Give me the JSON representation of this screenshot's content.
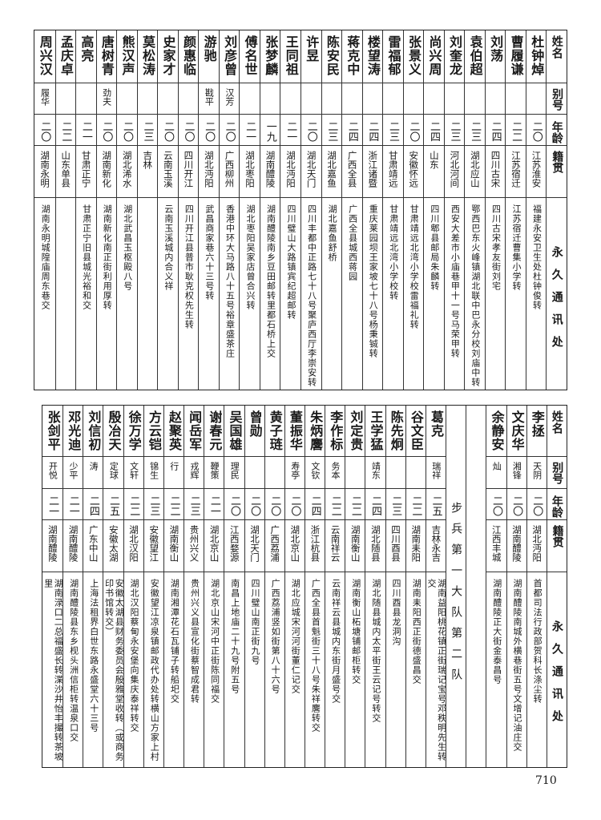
{
  "headers": {
    "name": "姓名",
    "alias": "别号",
    "age": "年龄",
    "origin": "籍贯",
    "address": "永久通讯处"
  },
  "top_table": [
    {
      "name": "杜钟焯",
      "alias": "",
      "age": "二〇",
      "origin": "江苏淮安",
      "address": "福建永安卫生处杜钟俊转"
    },
    {
      "name": "曹履谦",
      "alias": "",
      "age": "二二",
      "origin": "江苏宿迁",
      "address": "江苏宿迁曹集小学转"
    },
    {
      "name": "刘荡",
      "alias": "",
      "age": "二四",
      "origin": "四川古宋",
      "address": "四川古宋孝友街刘宅"
    },
    {
      "name": "袁伯超",
      "alias": "",
      "age": "二三",
      "origin": "湖北应山",
      "address": "鄂西巴东火峰镇湖北联中巴永分校刘庙中转"
    },
    {
      "name": "刘奎龙",
      "alias": "",
      "age": "二三",
      "origin": "河北河间",
      "address": "西安大差市小庙巷甲十一号马荣甲转"
    },
    {
      "name": "尚兴周",
      "alias": "",
      "age": "二四",
      "origin": "山东",
      "address": "四川郫县邮局朱麟转"
    },
    {
      "name": "张景义",
      "alias": "",
      "age": "二〇",
      "origin": "安徽怀远",
      "address": "甘肃靖远北湾小学校雷福礼转"
    },
    {
      "name": "雷福郁",
      "alias": "",
      "age": "二三",
      "origin": "甘肃靖远",
      "address": "甘肃靖远北湾小学校转"
    },
    {
      "name": "楼望涛",
      "alias": "",
      "age": "二四",
      "origin": "浙江诸暨",
      "address": "重庆莱园坝王家坡七十八号杨秉铖转"
    },
    {
      "name": "蒋克中",
      "alias": "",
      "age": "二四",
      "origin": "广西全县",
      "address": "广西全县城西蒋园"
    },
    {
      "name": "陈安民",
      "alias": "",
      "age": "二三",
      "origin": "湖北嘉鱼",
      "address": "湖北嘉鱼舒桥"
    },
    {
      "name": "许昱",
      "alias": "",
      "age": "二〇",
      "origin": "湖北天门",
      "address": "四川丰都中正路七十八号聚庐西厅李崇安转"
    },
    {
      "name": "王同祖",
      "alias": "",
      "age": "二一",
      "origin": "湖北沔阳",
      "address": "四川璧山大路镇宾纪超邮转"
    },
    {
      "name": "张梦麟",
      "alias": "",
      "age": "一九",
      "origin": "湖南醴陵",
      "address": "湖南醴陵南乡豆田邮转里都石桥上交"
    },
    {
      "name": "傅名世",
      "alias": "",
      "age": "二一",
      "origin": "湖北枣阳",
      "address": "湖北枣阳吴家店曾合兴转"
    },
    {
      "name": "刘彦曾",
      "alias": "汉芳",
      "age": "二〇",
      "origin": "广西柳州",
      "address": "香港中环大马路八十五号裕章盛茶庄"
    },
    {
      "name": "游驰",
      "alias": "戡平",
      "age": "二〇",
      "origin": "湖北沔阳",
      "address": "武昌商家巷六十三号转"
    },
    {
      "name": "颜惠临",
      "alias": "",
      "age": "二〇",
      "origin": "四川开江",
      "address": "四川开江县普市耿克权先生转"
    },
    {
      "name": "史家才",
      "alias": "",
      "age": "二〇",
      "origin": "云南玉溪",
      "address": "云南玉溪城内合义祥"
    },
    {
      "name": "莫松涛",
      "alias": "",
      "age": "二三",
      "origin": "吉林",
      "address": ""
    },
    {
      "name": "熊汉声",
      "alias": "",
      "age": "二〇",
      "origin": "湖北浠水",
      "address": "湖北武昌玉枢殿八号"
    },
    {
      "name": "唐树青",
      "alias": "劲夫",
      "age": "二〇",
      "origin": "湖南新化",
      "address": "湖南新化南正街利用厚转"
    },
    {
      "name": "高亮",
      "alias": "",
      "age": "二一",
      "origin": "甘肃正宁",
      "address": "甘肃正宁旧县城光裕和交"
    },
    {
      "name": "孟庆卓",
      "alias": "",
      "age": "二二",
      "origin": "山东单县",
      "address": ""
    },
    {
      "name": "周兴汉",
      "alias": "履华",
      "age": "二〇",
      "origin": "湖南永明",
      "address": "湖南永明城隍庙周东巷交"
    }
  ],
  "bottom_section_label": "步兵第一大队第二队",
  "bottom_table_before_label": [
    {
      "name": "李拯",
      "alias": "天阴",
      "age": "二〇",
      "origin": "湖北沔阳",
      "address": "首都司法行政部贺科长涤尘转"
    },
    {
      "name": "文庆华",
      "alias": "湘锋",
      "age": "二〇",
      "origin": "湖南醴陵",
      "address": "湖南醴陵南城外横巷街五号文增记油庄交"
    },
    {
      "name": "余静安",
      "alias": "灿",
      "age": "二〇",
      "origin": "江西丰城",
      "address": "湖南醴陵正大街金泰昌号"
    }
  ],
  "bottom_table": [
    {
      "name": "葛克",
      "alias": "瑞祥",
      "age": "二五",
      "origin": "吉林永吉",
      "address": "湖南益阳桃花镇正街瑞记宝号邓秩明先生转交"
    },
    {
      "name": "谷文臣",
      "alias": "",
      "age": "二二",
      "origin": "湖南耒阳",
      "address": "湖南耒阳西正街德盛昌交"
    },
    {
      "name": "陈先炯",
      "alias": "",
      "age": "二三",
      "origin": "四川酉县",
      "address": "四川酉县龙洞沟"
    },
    {
      "name": "王学猛",
      "alias": "靖东",
      "age": "二四",
      "origin": "湖北随县",
      "address": "湖北随县城内太平街王云记号转交"
    },
    {
      "name": "刘定贵",
      "alias": "",
      "age": "二二",
      "origin": "湖南衡山",
      "address": "湖南衡山柘塘铺邮柜转交"
    },
    {
      "name": "李作标",
      "alias": "务本",
      "age": "二二",
      "origin": "云南祥云",
      "address": "云南祥云县城内东街月盛号交"
    },
    {
      "name": "朱炳麐",
      "alias": "文钦",
      "age": "二四",
      "origin": "浙江杭县",
      "address": "广西全县首魁街三十八号朱祥麐转交"
    },
    {
      "name": "董振华",
      "alias": "寿亭",
      "age": "二〇",
      "origin": "湖北京山",
      "address": "湖北应城宋河河街董仁记交"
    },
    {
      "name": "黄子琏",
      "alias": "",
      "age": "二〇",
      "origin": "广西荔浦",
      "address": "广西荔浦竖如街第八十六号"
    },
    {
      "name": "曾勋",
      "alias": "",
      "age": "二〇",
      "origin": "湖北天门",
      "address": "四川璧山南正街九号"
    },
    {
      "name": "吴国雄",
      "alias": "理民",
      "age": "二〇",
      "origin": "江西婺源",
      "address": "南昌上地庙二十九号附五号"
    },
    {
      "name": "谢春元",
      "alias": "鞭策",
      "age": "二一",
      "origin": "湖北京山",
      "address": "湖北京山宋河中正街陈同福交"
    },
    {
      "name": "闻岳军",
      "alias": "戎辉",
      "age": "二三",
      "origin": "贵州兴义",
      "address": "贵州兴义县宣化街蔡智成君转"
    },
    {
      "name": "赵聚英",
      "alias": "行",
      "age": "二二",
      "origin": "湖南衡山",
      "address": "湖南湘潭花石瓦铺子转船圯交"
    },
    {
      "name": "方云铠",
      "alias": "锦生",
      "age": "二三",
      "origin": "安徽望江",
      "address": "安徽望江凉泉镇邮政代办处转横山方家上村"
    },
    {
      "name": "徐万学",
      "alias": "文轩",
      "age": "二二",
      "origin": "湖北汉阳",
      "address": "湖北汉阳蔡甸永安堡向集庆泰祥转交"
    },
    {
      "name": "殷冶天",
      "alias": "定球",
      "age": "二五",
      "origin": "安徽太湖",
      "address": "安徽太湖县财务委员会殷雅堂收转（或商务印书馆转交）"
    },
    {
      "name": "刘信初",
      "alias": "涛",
      "age": "二四",
      "origin": "广东中山",
      "address": "上海法租界白世东路永盛堂六十三号"
    },
    {
      "name": "邓光迪",
      "alias": "少平",
      "age": "二一",
      "origin": "湖南醴陵",
      "address": "湖南醴陵县东乡枧头洲信柜转温泉口交"
    },
    {
      "name": "张剑平",
      "alias": "开悦",
      "age": "二一",
      "origin": "湖南醴陵",
      "address": "湖南渌口二总福盛长转渫沙井怡丰撮转茶坡里"
    }
  ],
  "page_number": "710"
}
